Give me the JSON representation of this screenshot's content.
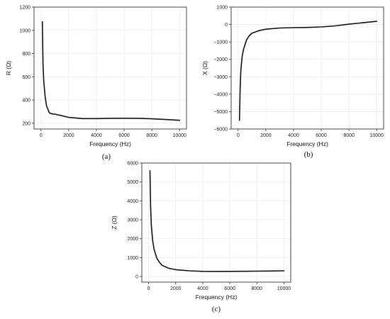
{
  "chart_data": [
    {
      "type": "line",
      "caption": "(a)",
      "xlabel": "Frequency (Hz)",
      "ylabel": "R (Ω)",
      "xlim": [
        -500,
        10500
      ],
      "ylim": [
        150,
        1200
      ],
      "xticks": [
        0,
        2000,
        4000,
        6000,
        8000,
        10000
      ],
      "yticks": [
        200,
        400,
        600,
        800,
        1000,
        1200
      ],
      "grid": true,
      "series": [
        {
          "x": [
            100,
            150,
            200,
            300,
            400,
            600,
            800,
            1000,
            1500,
            2000,
            3000,
            4000,
            5000,
            6000,
            7000,
            8000,
            9000,
            10000
          ],
          "y": [
            1075,
            700,
            560,
            430,
            350,
            290,
            280,
            278,
            265,
            250,
            240,
            240,
            242,
            243,
            242,
            238,
            232,
            225
          ]
        }
      ]
    },
    {
      "type": "line",
      "caption": "(b)",
      "xlabel": "Frequency (Hz)",
      "ylabel": "X (Ω)",
      "xlim": [
        -500,
        10500
      ],
      "ylim": [
        -6000,
        1000
      ],
      "xticks": [
        0,
        2000,
        4000,
        6000,
        8000,
        10000
      ],
      "yticks": [
        -6000,
        -5000,
        -4000,
        -3000,
        -2000,
        -1000,
        0,
        1000
      ],
      "grid": true,
      "series": [
        {
          "x": [
            100,
            150,
            200,
            300,
            400,
            600,
            800,
            1000,
            1500,
            2000,
            3000,
            4000,
            5000,
            6000,
            7000,
            8000,
            9000,
            10000
          ],
          "y": [
            -5500,
            -3600,
            -2600,
            -1800,
            -1400,
            -900,
            -650,
            -500,
            -350,
            -270,
            -200,
            -180,
            -170,
            -140,
            -80,
            20,
            100,
            180
          ]
        }
      ]
    },
    {
      "type": "line",
      "caption": "(c)",
      "xlabel": "Frequency (Hz)",
      "ylabel": "Z (Ω)",
      "xlim": [
        -500,
        10500
      ],
      "ylim": [
        -300,
        6000
      ],
      "xticks": [
        0,
        2000,
        4000,
        6000,
        8000,
        10000
      ],
      "yticks": [
        0,
        1000,
        2000,
        3000,
        4000,
        5000,
        6000
      ],
      "grid": true,
      "series": [
        {
          "x": [
            100,
            150,
            200,
            300,
            400,
            600,
            800,
            1000,
            1500,
            2000,
            3000,
            4000,
            5000,
            6000,
            7000,
            8000,
            9000,
            10000
          ],
          "y": [
            5600,
            3700,
            2700,
            1900,
            1450,
            980,
            750,
            590,
            430,
            360,
            300,
            270,
            265,
            270,
            275,
            280,
            290,
            300
          ]
        }
      ]
    }
  ]
}
